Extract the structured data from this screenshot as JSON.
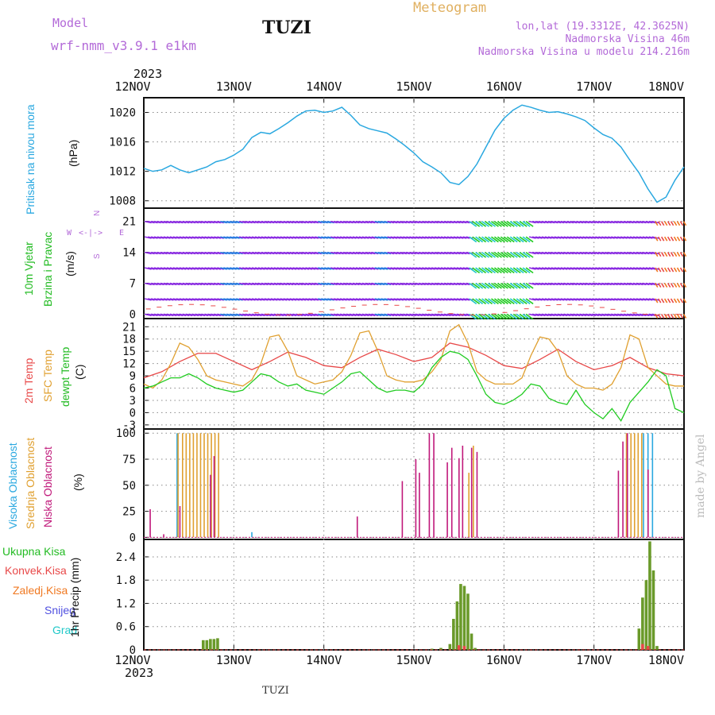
{
  "header": {
    "model_label": "Model",
    "model_name": "wrf-nmm_v3.9.1 e1km",
    "station": "TUZI",
    "product": "Meteogram",
    "lonlat": "lon,lat (19.3312E, 42.3625N)",
    "altitude": "Nadmorska Visina 46m",
    "model_altitude": "Nadmorska Visina u modelu 214.216m",
    "footer_station": "TUZI",
    "credit": "made by Angel"
  },
  "colors": {
    "pressure": "#2aa8e0",
    "temp2m": "#e84848",
    "sfc_temp": "#e0a030",
    "dewpoint": "#22cc22",
    "cloud_high": "#2aa8e0",
    "cloud_mid": "#e0a030",
    "cloud_low": "#c0187a",
    "rain_total": "#22bb22",
    "rain_conv": "#e84848",
    "freezing": "#f07820",
    "snow": "#5050e0",
    "hail": "#20c8c8",
    "barb": "#8a2be2"
  },
  "time_axis": {
    "year_top": "2023",
    "year_bottom": "2023",
    "ticks": [
      "12NOV",
      "13NOV",
      "14NOV",
      "15NOV",
      "16NOV",
      "17NOV",
      "18NOV"
    ]
  },
  "panels": {
    "pressure": {
      "label": "Pritisak na nivou mora",
      "unit": "(hPa)",
      "ticks": [
        "1020",
        "1016",
        "1012",
        "1008"
      ]
    },
    "wind": {
      "label1": "10m Vjetar",
      "label2": "Brzina i Pravac",
      "unit": "(m/s)",
      "ticks": [
        "21",
        "14",
        "7",
        "0"
      ],
      "compass": {
        "n": "N",
        "e": "E",
        "s": "S",
        "w": "W"
      }
    },
    "temperature": {
      "label1": "2m Temp",
      "label2": "SFC Temp",
      "label3": "dewpt Temp",
      "unit": "(C)",
      "ticks": [
        "21",
        "18",
        "15",
        "12",
        "9",
        "6",
        "3",
        "0",
        "-3"
      ]
    },
    "clouds": {
      "label_high": "Visoka Oblacnost",
      "label_mid": "Srednja Oblacnost",
      "label_low": "Niska Oblacnost",
      "unit": "(%)",
      "ticks": [
        "100",
        "75",
        "50",
        "25",
        "0"
      ]
    },
    "precip": {
      "legend": [
        "Ukupna Kisa",
        "Konvek.Kisa",
        "Zaledj.Kisa",
        "Snijeg",
        "Grad"
      ],
      "unit": "1hr Precip (mm)",
      "ticks": [
        "2.4",
        "1.8",
        "1.2",
        "0.6",
        "0"
      ]
    }
  },
  "chart_data": [
    {
      "type": "line",
      "x_unit": "days since 12NOV 00UTC",
      "ylim": [
        1007,
        1022
      ],
      "series": [
        {
          "x": [
            0,
            0.1,
            0.2,
            0.3,
            0.4,
            0.5,
            0.6,
            0.7,
            0.8,
            0.9,
            1.0,
            1.1,
            1.2,
            1.3,
            1.4,
            1.5,
            1.6,
            1.7,
            1.8,
            1.9,
            2.0,
            2.1,
            2.2,
            2.3,
            2.4,
            2.5,
            2.6,
            2.7,
            2.8,
            2.9,
            3.0,
            3.1,
            3.2,
            3.3,
            3.4,
            3.5,
            3.6,
            3.7,
            3.8,
            3.9,
            4.0,
            4.1,
            4.2,
            4.3,
            4.4,
            4.5,
            4.6,
            4.7,
            4.8,
            4.9,
            5.0,
            5.1,
            5.2,
            5.3,
            5.4,
            5.5,
            5.6,
            5.7,
            5.8,
            5.9,
            6.0
          ],
          "values": [
            1012.4,
            1012.0,
            1012.2,
            1012.8,
            1012.2,
            1011.8,
            1012.2,
            1012.6,
            1013.3,
            1013.6,
            1014.2,
            1015.0,
            1016.6,
            1017.3,
            1017.1,
            1017.8,
            1018.6,
            1019.5,
            1020.2,
            1020.3,
            1020.0,
            1020.2,
            1020.7,
            1019.6,
            1018.3,
            1017.8,
            1017.5,
            1017.2,
            1016.4,
            1015.5,
            1014.5,
            1013.3,
            1012.6,
            1011.8,
            1010.5,
            1010.2,
            1011.3,
            1013.0,
            1015.3,
            1017.6,
            1019.2,
            1020.3,
            1021.0,
            1020.7,
            1020.3,
            1020.0,
            1020.1,
            1019.8,
            1019.4,
            1018.9,
            1017.9,
            1017.0,
            1016.5,
            1015.3,
            1013.5,
            1011.8,
            1009.6,
            1007.8,
            1008.5,
            1010.8,
            1012.6
          ]
        }
      ]
    },
    {
      "type": "line",
      "x_unit": "days since 12NOV 00UTC",
      "ylim": [
        -4,
        23
      ],
      "series": [
        {
          "x": [
            0,
            0.2,
            0.4,
            0.6,
            0.8,
            1.0,
            1.2,
            1.4,
            1.6,
            1.8,
            2.0,
            2.2,
            2.4,
            2.6,
            2.8,
            3.0,
            3.2,
            3.4,
            3.6,
            3.8,
            4.0,
            4.2,
            4.4,
            4.6,
            4.8,
            5.0,
            5.2,
            5.4,
            5.6,
            5.8,
            6.0
          ],
          "values": [
            8.5,
            10,
            12.5,
            14.5,
            14.5,
            12.5,
            10.5,
            12.5,
            14.8,
            13.5,
            11.5,
            11,
            13.5,
            15.5,
            14.2,
            12.5,
            13.5,
            17,
            16,
            14,
            11.5,
            10.8,
            13,
            15.5,
            12.5,
            10.5,
            11.5,
            13.5,
            11,
            9.5,
            9
          ]
        },
        {
          "x": [
            0,
            0.1,
            0.2,
            0.3,
            0.4,
            0.5,
            0.6,
            0.7,
            0.8,
            0.9,
            1.0,
            1.1,
            1.2,
            1.3,
            1.4,
            1.5,
            1.6,
            1.7,
            1.8,
            1.9,
            2.0,
            2.1,
            2.2,
            2.3,
            2.4,
            2.5,
            2.6,
            2.7,
            2.8,
            2.9,
            3.0,
            3.1,
            3.2,
            3.3,
            3.4,
            3.5,
            3.6,
            3.7,
            3.8,
            3.9,
            4.0,
            4.1,
            4.2,
            4.3,
            4.4,
            4.5,
            4.6,
            4.7,
            4.8,
            4.9,
            5.0,
            5.1,
            5.2,
            5.3,
            5.4,
            5.5,
            5.6,
            5.7,
            5.8,
            5.9,
            6.0
          ],
          "values": [
            7,
            6,
            8,
            12,
            17,
            16,
            13,
            9,
            8,
            7.5,
            7,
            6.5,
            8,
            12,
            18.5,
            19,
            15,
            9,
            8,
            7,
            7.5,
            8,
            10,
            14,
            19.5,
            20,
            15,
            9,
            8,
            7.5,
            7.5,
            8,
            10,
            13,
            20,
            21.5,
            17,
            10,
            8,
            7,
            7,
            7,
            8.5,
            14,
            18.5,
            18,
            15,
            9,
            7,
            6,
            6,
            5.5,
            7,
            11,
            19,
            18,
            11,
            9,
            7,
            6.5,
            6.5
          ]
        },
        {
          "x": [
            0,
            0.1,
            0.2,
            0.3,
            0.4,
            0.5,
            0.6,
            0.7,
            0.8,
            0.9,
            1.0,
            1.1,
            1.2,
            1.3,
            1.4,
            1.5,
            1.6,
            1.7,
            1.8,
            1.9,
            2.0,
            2.1,
            2.2,
            2.3,
            2.4,
            2.5,
            2.6,
            2.7,
            2.8,
            2.9,
            3.0,
            3.1,
            3.2,
            3.3,
            3.4,
            3.5,
            3.6,
            3.7,
            3.8,
            3.9,
            4.0,
            4.1,
            4.2,
            4.3,
            4.4,
            4.5,
            4.6,
            4.7,
            4.8,
            4.9,
            5.0,
            5.1,
            5.2,
            5.3,
            5.4,
            5.5,
            5.6,
            5.7,
            5.8,
            5.9,
            6.0
          ],
          "values": [
            6,
            6.5,
            7.5,
            8.5,
            8.5,
            9.5,
            8.5,
            7,
            6,
            5.5,
            5,
            5.5,
            7.5,
            9.5,
            9,
            7.5,
            6.5,
            7,
            5.5,
            5,
            4.5,
            6,
            7.5,
            9.5,
            10,
            8,
            6,
            5,
            5.5,
            5.5,
            5,
            7,
            11,
            13.5,
            15,
            14.5,
            13,
            9,
            4.5,
            2.5,
            2,
            3,
            4.5,
            7,
            6.5,
            3.5,
            2.5,
            2,
            5.5,
            2,
            0,
            -1.5,
            1,
            -2,
            2.5,
            5,
            7.5,
            10.5,
            9,
            1,
            0
          ]
        }
      ]
    },
    {
      "type": "bar",
      "x_unit": "days since 12NOV 00UTC",
      "ylim": [
        0,
        100
      ],
      "series": [
        {
          "x": [
            0.37,
            1.2,
            5.55,
            5.6,
            5.65
          ],
          "values": [
            100,
            5,
            100,
            100,
            100
          ]
        },
        {
          "x": [
            0.37,
            0.42,
            0.46,
            0.5,
            0.54,
            0.58,
            0.62,
            0.66,
            0.7,
            0.74,
            0.78,
            0.82,
            3.6,
            3.65,
            5.35,
            5.4,
            5.44,
            5.48,
            5.52
          ],
          "values": [
            100,
            100,
            100,
            100,
            100,
            100,
            100,
            100,
            100,
            100,
            100,
            100,
            62,
            88,
            100,
            100,
            100,
            100,
            100
          ]
        },
        {
          "x": [
            0.05,
            0.2,
            0.38,
            0.72,
            0.76,
            2.35,
            2.85,
            3.0,
            3.04,
            3.15,
            3.2,
            3.35,
            3.4,
            3.48,
            3.52,
            3.62,
            3.68,
            5.25,
            5.3,
            5.35,
            5.58
          ],
          "values": [
            27,
            3,
            30,
            60,
            78,
            20,
            54,
            75,
            62,
            100,
            100,
            72,
            86,
            76,
            88,
            86,
            82,
            64,
            92,
            100,
            65
          ]
        }
      ]
    },
    {
      "type": "bar",
      "x_unit": "days since 12NOV 00UTC",
      "ylim": [
        0,
        2.85
      ],
      "series": [
        {
          "x": [
            0.66,
            0.7,
            0.74,
            0.78,
            0.82,
            3.2,
            3.3,
            3.4,
            3.44,
            3.48,
            3.52,
            3.56,
            3.6,
            3.64,
            3.68,
            5.5,
            5.54,
            5.58,
            5.62,
            5.66,
            5.7
          ],
          "values": [
            0.25,
            0.25,
            0.28,
            0.28,
            0.3,
            0.03,
            0.05,
            0.15,
            0.8,
            1.25,
            1.7,
            1.65,
            1.45,
            0.42,
            0.05,
            0.55,
            1.35,
            1.8,
            2.8,
            2.05,
            0.1
          ]
        },
        {
          "x": [
            3.5,
            3.56,
            5.54,
            5.6
          ],
          "values": [
            0.12,
            0.1,
            0.15,
            0.1
          ]
        }
      ]
    }
  ]
}
